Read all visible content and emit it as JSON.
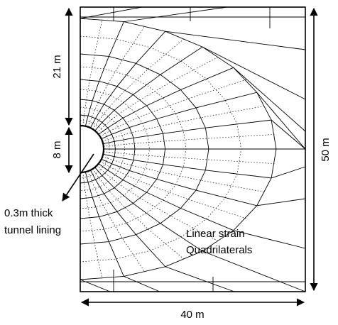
{
  "labels": {
    "height_upper": "21 m",
    "height_tunnel": "8 m",
    "height_total": "50 m",
    "width": "40 m",
    "lining_line1": "0.3m thick",
    "lining_line2": "tunnel lining",
    "element_line1": "Linear strain",
    "element_line2": "Quadrilaterals"
  },
  "colors": {
    "line": "#000000",
    "background": "#ffffff"
  }
}
